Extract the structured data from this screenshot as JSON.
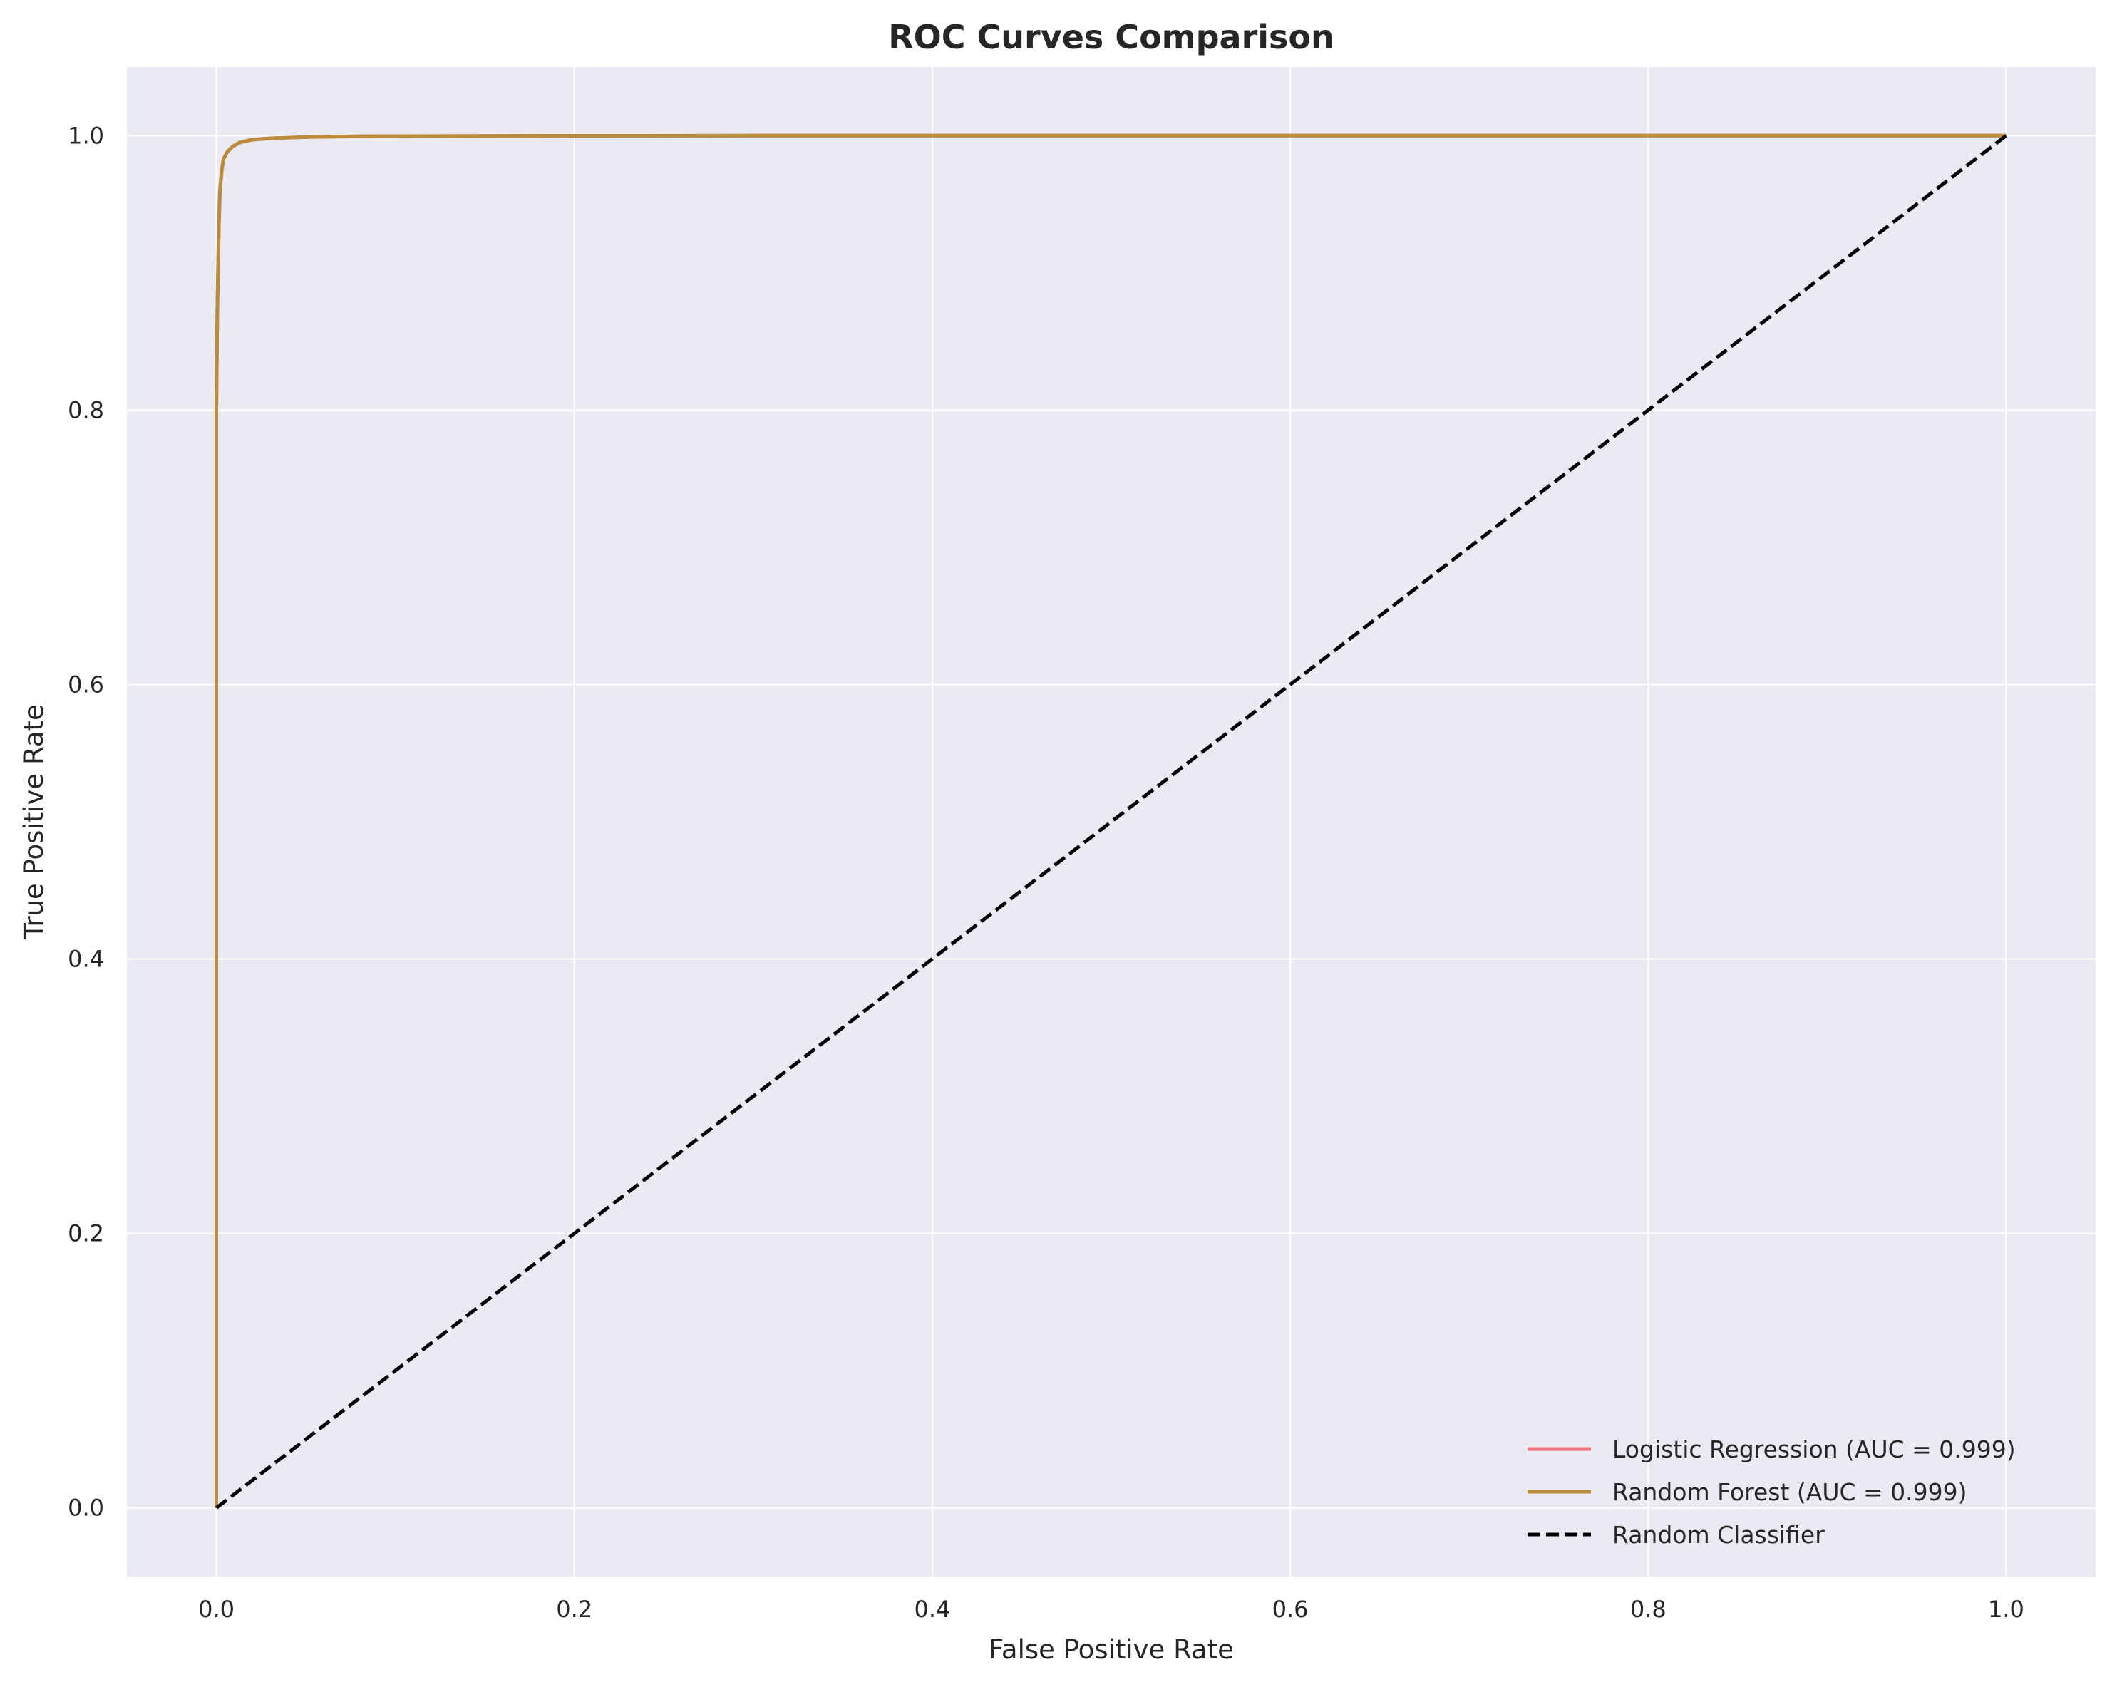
{
  "chart_data": {
    "type": "line",
    "title": "ROC Curves Comparison",
    "xlabel": "False Positive Rate",
    "ylabel": "True Positive Rate",
    "xlim": [
      -0.05,
      1.05
    ],
    "ylim": [
      -0.05,
      1.05
    ],
    "xticks": [
      0.0,
      0.2,
      0.4,
      0.6,
      0.8,
      1.0
    ],
    "yticks": [
      0.0,
      0.2,
      0.4,
      0.6,
      0.8,
      1.0
    ],
    "xtick_labels": [
      "0.0",
      "0.2",
      "0.4",
      "0.6",
      "0.8",
      "1.0"
    ],
    "ytick_labels": [
      "0.0",
      "0.2",
      "0.4",
      "0.6",
      "0.8",
      "1.0"
    ],
    "grid": true,
    "legend_position": "bottom-right",
    "series": [
      {
        "name": "Logistic Regression (AUC = 0.999)",
        "color": "#ee7684",
        "style": "solid",
        "x": [
          0.0,
          0.0,
          0.0005,
          0.001,
          0.0015,
          0.002,
          0.003,
          0.004,
          0.006,
          0.009,
          0.013,
          0.02,
          0.03,
          0.05,
          0.08,
          0.15,
          0.3,
          0.5,
          0.75,
          1.0
        ],
        "y": [
          0.0,
          0.8,
          0.87,
          0.91,
          0.94,
          0.96,
          0.975,
          0.983,
          0.988,
          0.992,
          0.995,
          0.997,
          0.998,
          0.999,
          0.9995,
          0.9998,
          1.0,
          1.0,
          1.0,
          1.0
        ]
      },
      {
        "name": "Random Forest (AUC = 0.999)",
        "color": "#bb8c3c",
        "style": "solid",
        "x": [
          0.0,
          0.0,
          0.0005,
          0.001,
          0.0015,
          0.002,
          0.003,
          0.004,
          0.006,
          0.009,
          0.013,
          0.02,
          0.03,
          0.05,
          0.08,
          0.15,
          0.3,
          0.5,
          0.75,
          1.0
        ],
        "y": [
          0.0,
          0.8,
          0.87,
          0.91,
          0.94,
          0.96,
          0.975,
          0.983,
          0.988,
          0.992,
          0.995,
          0.997,
          0.998,
          0.999,
          0.9995,
          0.9998,
          1.0,
          1.0,
          1.0,
          1.0
        ]
      },
      {
        "name": "Random Classifier",
        "color": "#000000",
        "style": "dashed",
        "x": [
          0.0,
          1.0
        ],
        "y": [
          0.0,
          1.0
        ]
      }
    ]
  }
}
